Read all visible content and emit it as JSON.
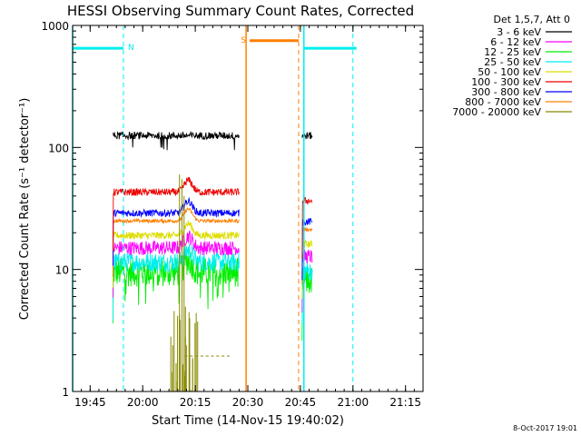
{
  "chart_data": {
    "type": "line",
    "title": "HESSI Observing Summary Count Rates, Corrected",
    "xlabel": "Start Time (14-Nov-15 19:40:02)",
    "ylabel": "Corrected Count Rate (s⁻¹ detector⁻¹)",
    "yscale": "log",
    "ylim": [
      1,
      1000
    ],
    "xlim_minutes_after_1940": [
      0,
      100
    ],
    "x_ticks": [
      {
        "min": 5,
        "label": "19:45"
      },
      {
        "min": 20,
        "label": "20:00"
      },
      {
        "min": 35,
        "label": "20:15"
      },
      {
        "min": 50,
        "label": "20:30"
      },
      {
        "min": 65,
        "label": "20:45"
      },
      {
        "min": 80,
        "label": "21:00"
      },
      {
        "min": 95,
        "label": "21:15"
      }
    ],
    "y_ticks": [
      {
        "value": 1,
        "label": "1"
      },
      {
        "value": 10,
        "label": "10"
      },
      {
        "value": 100,
        "label": "100"
      },
      {
        "value": 1000,
        "label": "1000"
      }
    ],
    "legend_header": "Det 1,5,7, Att 0",
    "legend_position": "right",
    "series": [
      {
        "name": "3 - 6 keV",
        "color": "#000000",
        "level": 125,
        "spread": 0.03
      },
      {
        "name": "6 - 12 keV",
        "color": "#ff00ff",
        "level": 15,
        "spread": 0.06
      },
      {
        "name": "12 - 25 keV",
        "color": "#00ee00",
        "level": 9.5,
        "spread": 0.12
      },
      {
        "name": "25 - 50 keV",
        "color": "#00eeee",
        "level": 11.5,
        "spread": 0.08
      },
      {
        "name": "50 - 100 keV",
        "color": "#dddd00",
        "level": 19,
        "spread": 0.03
      },
      {
        "name": "100 - 300 keV",
        "color": "#ee0000",
        "level": 43,
        "spread": 0.03
      },
      {
        "name": "300 - 800 keV",
        "color": "#0000ff",
        "level": 29,
        "spread": 0.03
      },
      {
        "name": "800 - 7000 keV",
        "color": "#ff7f00",
        "level": 25,
        "spread": 0.015
      },
      {
        "name": "7000 - 20000 keV",
        "color": "#888800",
        "level": 1,
        "spread": 0
      }
    ],
    "data_intervals_min": [
      [
        11.5,
        47.5
      ],
      [
        65.5,
        68.5
      ]
    ],
    "flare_peak_min": 33,
    "flags": [
      {
        "label": "N",
        "color": "#00eeee",
        "start_min": 0,
        "end_min": 14.5,
        "level": 650
      },
      {
        "label": "S",
        "color": "#ff7f00",
        "start_min": 50.5,
        "end_min": 64.5,
        "level": 750
      },
      {
        "label": "",
        "color": "#00eeee",
        "start_min": 66,
        "end_min": 81,
        "level": 650
      }
    ],
    "dashed_markers": [
      {
        "min": 14.5,
        "color": "#00eeee"
      },
      {
        "min": 64.5,
        "color": "#ff7f00"
      },
      {
        "min": 80,
        "color": "#00eeee"
      }
    ],
    "solid_markers": [
      {
        "min": 0,
        "color": "#00eeee"
      },
      {
        "min": 49.5,
        "color": "#ff7f00"
      },
      {
        "min": 66,
        "color": "#00eeee"
      }
    ],
    "timestamp": "8-Oct-2017 19:01"
  }
}
